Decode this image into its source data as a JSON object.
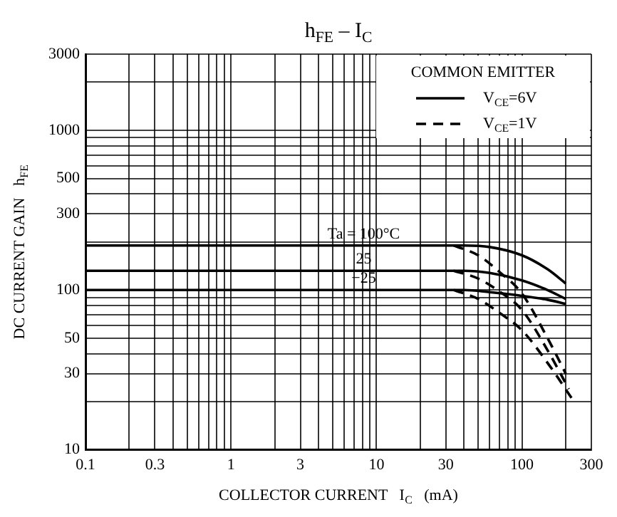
{
  "chart_data": {
    "type": "line",
    "title": "h$_{FE}$ – I$_{C}$",
    "xlabel": "COLLECTOR CURRENT   I$_{C}$   (mA)",
    "ylabel": "DC CURRENT GAIN   h$_{FE}$",
    "legend_title": "COMMON EMITTER",
    "legend": "top right",
    "log": "xy",
    "grid": true,
    "marker": "none",
    "xlim": [
      0.1,
      300
    ],
    "ylim": [
      10,
      3000
    ],
    "xticks": [
      0.1,
      {
        "value": 0.2,
        "label": null
      },
      0.3,
      {
        "value": 0.4,
        "label": null
      },
      {
        "value": 0.5,
        "label": null
      },
      {
        "value": 0.6,
        "label": null
      },
      {
        "value": 0.7,
        "label": null
      },
      {
        "value": 0.8,
        "label": null
      },
      {
        "value": 0.9,
        "label": null
      },
      1,
      {
        "value": 2,
        "label": null
      },
      3,
      {
        "value": 4,
        "label": null
      },
      {
        "value": 5,
        "label": null
      },
      {
        "value": 6,
        "label": null
      },
      {
        "value": 7,
        "label": null
      },
      {
        "value": 8,
        "label": null
      },
      {
        "value": 9,
        "label": null
      },
      10,
      {
        "value": 20,
        "label": null
      },
      30,
      {
        "value": 40,
        "label": null
      },
      {
        "value": 50,
        "label": null
      },
      {
        "value": 60,
        "label": null
      },
      {
        "value": 70,
        "label": null
      },
      {
        "value": 80,
        "label": null
      },
      {
        "value": 90,
        "label": null
      },
      100,
      {
        "value": 200,
        "label": null
      },
      300
    ],
    "yticks": [
      10,
      {
        "value": 20,
        "label": null
      },
      30,
      {
        "value": 40,
        "label": null
      },
      50,
      {
        "value": 60,
        "label": null
      },
      {
        "value": 70,
        "label": null
      },
      {
        "value": 80,
        "label": null
      },
      {
        "value": 90,
        "label": null
      },
      100,
      {
        "value": 200,
        "label": null
      },
      300,
      {
        "value": 400,
        "label": null
      },
      500,
      {
        "value": 600,
        "label": null
      },
      {
        "value": 700,
        "label": null
      },
      {
        "value": 800,
        "label": null
      },
      {
        "value": 900,
        "label": null
      },
      1000,
      {
        "value": 2000,
        "label": null
      },
      3000
    ],
    "series": [
      {
        "name": "V$_{CE}$=6V",
        "color": "#000000",
        "line_style": "solid",
        "x": [
          0.1,
          40,
          60,
          100,
          150,
          200
        ],
        "values": [
          190,
          190,
          186,
          165,
          135,
          110
        ]
      },
      {
        "color": "#000000",
        "line_style": "solid",
        "x": [
          0.1,
          40,
          60,
          100,
          150,
          200
        ],
        "values": [
          132,
          132,
          128,
          115,
          100,
          88
        ]
      },
      {
        "color": "#000000",
        "line_style": "solid",
        "x": [
          0.1,
          40,
          60,
          100,
          150,
          200
        ],
        "values": [
          100,
          100,
          97,
          92,
          87,
          82
        ]
      },
      {
        "name": "V$_{CE}$=1V",
        "color": "#000000",
        "line_style": "dashed",
        "x": [
          34,
          50,
          70,
          100,
          150,
          200
        ],
        "values": [
          190,
          165,
          130,
          95,
          50,
          30
        ]
      },
      {
        "color": "#000000",
        "line_style": "dashed",
        "x": [
          34,
          50,
          70,
          100,
          150,
          210
        ],
        "values": [
          132,
          118,
          98,
          75,
          42,
          24
        ]
      },
      {
        "color": "#000000",
        "line_style": "dashed",
        "x": [
          34,
          50,
          70,
          100,
          150,
          220
        ],
        "values": [
          100,
          88,
          72,
          56,
          35,
          21
        ]
      }
    ],
    "annotations": [
      "Ta = 100°C",
      "25",
      "−25"
    ]
  }
}
